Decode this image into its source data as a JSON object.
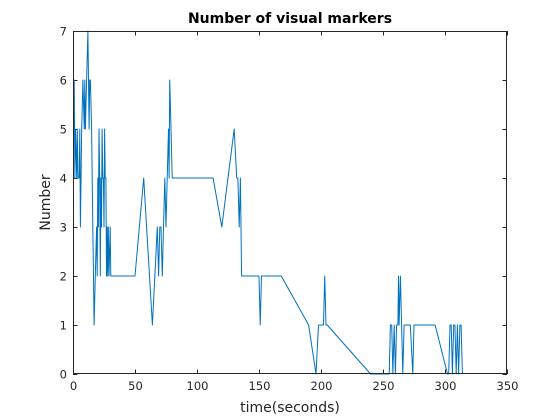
{
  "chart_data": {
    "type": "line",
    "title": "Number of visual markers",
    "xlabel": "time(seconds)",
    "ylabel": "Number",
    "xlim": [
      0,
      350
    ],
    "ylim": [
      0,
      7
    ],
    "xticks": [
      "0",
      "50",
      "100",
      "150",
      "200",
      "250",
      "300",
      "350"
    ],
    "yticks": [
      "0",
      "1",
      "2",
      "3",
      "4",
      "5",
      "6",
      "7"
    ],
    "grid": false,
    "legend": "none",
    "line_color": "#0072BD",
    "series": [
      {
        "x": [
          0,
          1,
          1.5,
          2,
          3,
          3.5,
          4,
          5,
          5.5,
          6,
          7,
          8,
          9,
          9.5,
          10,
          11,
          12,
          12.5,
          13,
          13.5,
          14,
          15,
          15.5,
          16,
          16.5,
          17,
          18,
          19,
          19.5,
          20,
          20.5,
          21,
          21.5,
          22,
          22.5,
          23,
          23.5,
          24,
          24.5,
          25,
          25.5,
          26,
          26.5,
          27,
          27.5,
          28,
          28.5,
          29,
          30,
          30.5,
          31,
          32,
          50,
          57,
          64,
          68,
          69,
          70,
          71,
          72,
          73,
          74,
          75,
          76,
          77,
          77.5,
          78,
          79,
          80,
          113,
          120,
          130,
          132,
          133,
          134,
          135,
          136,
          150,
          151,
          152,
          168,
          190,
          196,
          198,
          202,
          203,
          204,
          205,
          240,
          255,
          256,
          257,
          258,
          259,
          260,
          261,
          262,
          262.5,
          263,
          264,
          265,
          266,
          267,
          270,
          272,
          274,
          275,
          292,
          302,
          303,
          304,
          305,
          306,
          307,
          308,
          309,
          310,
          311,
          312,
          313,
          314
        ],
        "y": [
          6,
          6,
          4,
          5,
          4,
          5,
          4,
          4,
          5,
          3,
          5,
          6,
          5,
          6,
          5,
          6,
          7,
          6,
          5,
          6,
          6,
          5,
          4,
          3,
          2,
          1,
          2,
          3,
          2,
          4,
          3,
          5,
          4,
          2,
          4,
          3,
          5,
          4,
          4,
          3,
          5,
          4,
          4,
          2,
          3,
          2,
          3,
          2,
          3,
          2,
          2,
          2,
          2,
          4,
          1,
          3,
          2,
          3,
          3,
          2,
          3,
          4,
          3,
          4,
          5,
          4,
          6,
          5,
          4,
          4,
          3,
          5,
          4,
          4,
          3,
          4,
          2,
          2,
          1,
          2,
          2,
          1,
          0,
          1,
          1,
          2,
          1,
          1,
          0,
          0,
          1,
          1,
          0,
          1,
          0,
          1,
          1,
          2,
          1,
          2,
          1,
          0,
          1,
          1,
          1,
          0,
          1,
          1,
          0,
          0,
          1,
          1,
          0,
          1,
          1,
          0,
          1,
          0,
          1,
          1,
          0
        ]
      }
    ]
  }
}
